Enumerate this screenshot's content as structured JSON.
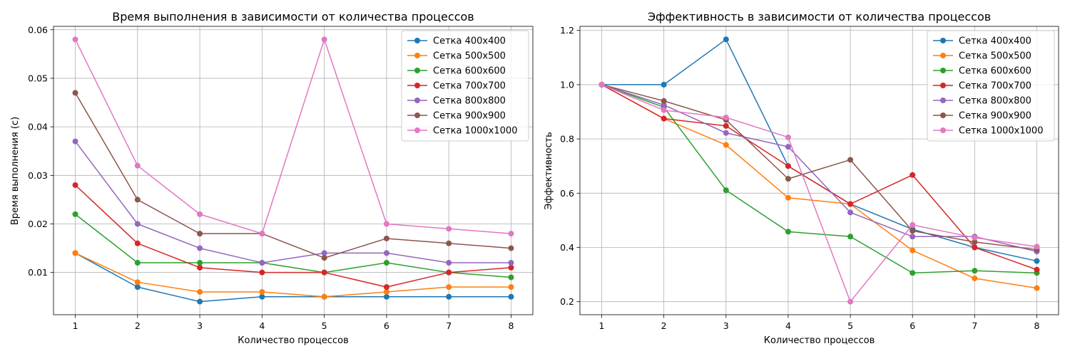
{
  "chart_data": [
    {
      "type": "line",
      "title": "Время выполнения в зависимости от количества процессов",
      "xlabel": "Количество процессов",
      "ylabel": "Время выполнения (с)",
      "x": [
        1,
        2,
        3,
        4,
        5,
        6,
        7,
        8
      ],
      "xlim": [
        0.65,
        8.35
      ],
      "ylim": [
        0.0013,
        0.0607
      ],
      "yticks": [
        0.01,
        0.02,
        0.03,
        0.04,
        0.05,
        0.06
      ],
      "ytick_labels": [
        "0.01",
        "0.02",
        "0.03",
        "0.04",
        "0.05",
        "0.06"
      ],
      "grid": true,
      "legend_position": "top-right",
      "series": [
        {
          "name": "Сетка 400x400",
          "color": "#1f77b4",
          "values": [
            0.014,
            0.007,
            0.004,
            0.005,
            0.005,
            0.005,
            0.005,
            0.005
          ]
        },
        {
          "name": "Сетка 500x500",
          "color": "#ff7f0e",
          "values": [
            0.014,
            0.008,
            0.006,
            0.006,
            0.005,
            0.006,
            0.007,
            0.007
          ]
        },
        {
          "name": "Сетка 600x600",
          "color": "#2ca02c",
          "values": [
            0.022,
            0.012,
            0.012,
            0.012,
            0.01,
            0.012,
            0.01,
            0.009
          ]
        },
        {
          "name": "Сетка 700x700",
          "color": "#d62728",
          "values": [
            0.028,
            0.016,
            0.011,
            0.01,
            0.01,
            0.007,
            0.01,
            0.011
          ]
        },
        {
          "name": "Сетка 800x800",
          "color": "#9467bd",
          "values": [
            0.037,
            0.02,
            0.015,
            0.012,
            0.014,
            0.014,
            0.012,
            0.012
          ]
        },
        {
          "name": "Сетка 900x900",
          "color": "#8c564b",
          "values": [
            0.047,
            0.025,
            0.018,
            0.018,
            0.013,
            0.017,
            0.016,
            0.015
          ]
        },
        {
          "name": "Сетка 1000x1000",
          "color": "#e377c2",
          "values": [
            0.058,
            0.032,
            0.022,
            0.018,
            0.058,
            0.02,
            0.019,
            0.018
          ]
        }
      ]
    },
    {
      "type": "line",
      "title": "Эффективность в зависимости от количества процессов",
      "xlabel": "Количество процессов",
      "ylabel": "Эффективность",
      "x": [
        1,
        2,
        3,
        4,
        5,
        6,
        7,
        8
      ],
      "xlim": [
        0.65,
        8.35
      ],
      "ylim": [
        0.152,
        1.215
      ],
      "yticks": [
        0.2,
        0.4,
        0.6,
        0.8,
        1.0,
        1.2
      ],
      "ytick_labels": [
        "0.2",
        "0.4",
        "0.6",
        "0.8",
        "1.0",
        "1.2"
      ],
      "grid": true,
      "legend_position": "top-right",
      "series": [
        {
          "name": "Сетка 400x400",
          "color": "#1f77b4",
          "values": [
            1.0,
            1.0,
            1.167,
            0.7,
            0.56,
            0.467,
            0.4,
            0.35
          ]
        },
        {
          "name": "Сетка 500x500",
          "color": "#ff7f0e",
          "values": [
            1.0,
            0.875,
            0.778,
            0.583,
            0.56,
            0.389,
            0.286,
            0.25
          ]
        },
        {
          "name": "Сетка 600x600",
          "color": "#2ca02c",
          "values": [
            1.0,
            0.917,
            0.611,
            0.458,
            0.44,
            0.306,
            0.314,
            0.306
          ]
        },
        {
          "name": "Сетка 700x700",
          "color": "#d62728",
          "values": [
            1.0,
            0.875,
            0.848,
            0.7,
            0.56,
            0.667,
            0.4,
            0.318
          ]
        },
        {
          "name": "Сетка 800x800",
          "color": "#9467bd",
          "values": [
            1.0,
            0.925,
            0.822,
            0.771,
            0.529,
            0.44,
            0.44,
            0.385
          ]
        },
        {
          "name": "Сетка 900x900",
          "color": "#8c564b",
          "values": [
            1.0,
            0.94,
            0.87,
            0.653,
            0.723,
            0.461,
            0.42,
            0.392
          ]
        },
        {
          "name": "Сетка 1000x1000",
          "color": "#e377c2",
          "values": [
            1.0,
            0.906,
            0.879,
            0.806,
            0.2,
            0.483,
            0.436,
            0.403
          ]
        }
      ]
    }
  ]
}
